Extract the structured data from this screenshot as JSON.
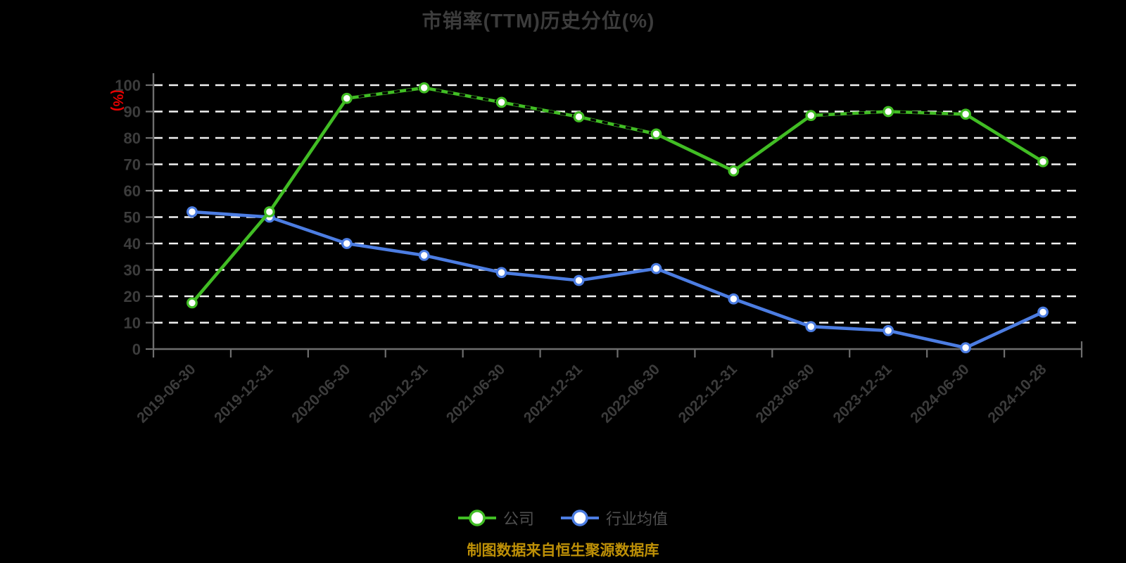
{
  "title": "市销率(TTM)历史分位(%)",
  "footer": "制图数据来自恒生聚源数据库",
  "legend": [
    {
      "label": "公司",
      "color": "#41BD24"
    },
    {
      "label": "行业均值",
      "color": "#4C7DE2"
    }
  ],
  "y_axis": {
    "unit": "(%)",
    "tick_labels": [
      "0",
      "10",
      "20",
      "30",
      "40",
      "50",
      "60",
      "70",
      "80",
      "90",
      "100"
    ]
  },
  "chart_data": {
    "type": "line",
    "title": "市销率(TTM)历史分位(%)",
    "xlabel": "",
    "ylabel": "(%)",
    "ylim": [
      0,
      100
    ],
    "ytick_step": 10,
    "grid": true,
    "grid_style": "dashed",
    "legend_position": "bottom",
    "categories": [
      "2019-06-30",
      "2019-12-31",
      "2020-06-30",
      "2020-12-31",
      "2021-06-30",
      "2021-12-31",
      "2022-06-30",
      "2022-12-31",
      "2023-06-30",
      "2023-12-31",
      "2024-06-30",
      "2024-10-28"
    ],
    "series": [
      {
        "name": "公司",
        "color": "#41BD24",
        "marker": "circle-white-fill",
        "values": [
          17.5,
          52,
          95,
          99,
          93.5,
          88,
          81.5,
          67.5,
          88.5,
          90,
          89,
          71
        ]
      },
      {
        "name": "行业均值",
        "color": "#4C7DE2",
        "marker": "circle-white-fill",
        "values": [
          52,
          50,
          40,
          35.5,
          29,
          26,
          30.5,
          19,
          8.5,
          7,
          0.5,
          14
        ]
      }
    ]
  },
  "colors": {
    "background": "#000000",
    "title": "#3C3C3C",
    "tick_label": "#3C3C3C",
    "unit": "#E60000",
    "legend_text": "#4F4F4F",
    "footer": "#BE9007",
    "grid": "#F2F2F2",
    "axis": "#6E6E6E",
    "marker_fill": "#FFFFFF",
    "overlay": "#000000"
  }
}
